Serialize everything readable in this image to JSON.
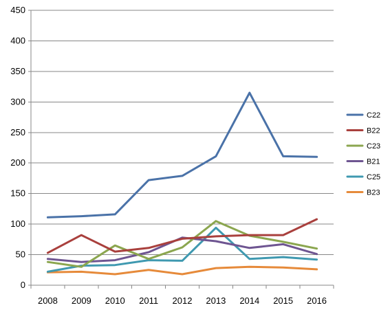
{
  "chart_data": {
    "type": "line",
    "title": "",
    "xlabel": "",
    "ylabel": "",
    "categories": [
      "2008",
      "2009",
      "2010",
      "2011",
      "2012",
      "2013",
      "2014",
      "2015",
      "2016"
    ],
    "ylim": [
      0,
      450
    ],
    "yticks": [
      0,
      50,
      100,
      150,
      200,
      250,
      300,
      350,
      400,
      450
    ],
    "grid": true,
    "legend_position": "right",
    "series": [
      {
        "name": "C22",
        "color": "#4A72A8",
        "values": [
          111,
          113,
          116,
          172,
          179,
          211,
          315,
          211,
          210
        ]
      },
      {
        "name": "B22",
        "color": "#A9403D",
        "values": [
          53,
          82,
          55,
          61,
          76,
          80,
          82,
          82,
          108
        ]
      },
      {
        "name": "C23",
        "color": "#8BA64F",
        "values": [
          38,
          30,
          65,
          43,
          62,
          105,
          81,
          71,
          60
        ]
      },
      {
        "name": "B21",
        "color": "#6E5591",
        "values": [
          43,
          38,
          41,
          54,
          78,
          72,
          61,
          67,
          51
        ]
      },
      {
        "name": "C25",
        "color": "#3F99B0",
        "values": [
          22,
          32,
          33,
          41,
          40,
          94,
          43,
          46,
          42
        ]
      },
      {
        "name": "B23",
        "color": "#E68A3A",
        "values": [
          21,
          22,
          18,
          25,
          18,
          28,
          30,
          29,
          26
        ]
      }
    ]
  }
}
